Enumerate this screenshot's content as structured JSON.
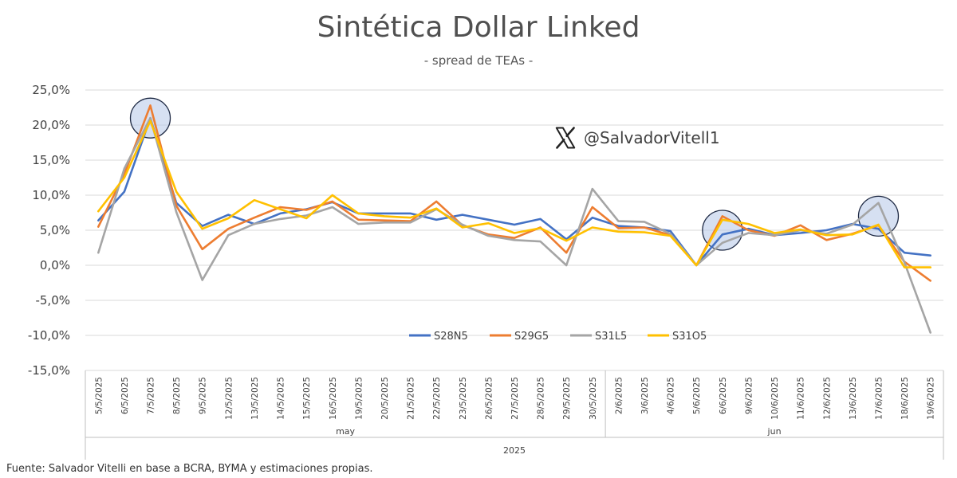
{
  "chart_data": {
    "type": "line",
    "title": "Sintética Dollar Linked",
    "subtitle": "- spread de TEAs -",
    "x": [
      "5/5/2025",
      "6/5/2025",
      "7/5/2025",
      "8/5/2025",
      "9/5/2025",
      "12/5/2025",
      "13/5/2025",
      "14/5/2025",
      "15/5/2025",
      "16/5/2025",
      "19/5/2025",
      "20/5/2025",
      "21/5/2025",
      "22/5/2025",
      "23/5/2025",
      "26/5/2025",
      "27/5/2025",
      "28/5/2025",
      "29/5/2025",
      "30/5/2025",
      "2/6/2025",
      "3/6/2025",
      "4/6/2025",
      "5/6/2025",
      "6/6/2025",
      "9/6/2025",
      "10/6/2025",
      "11/6/2025",
      "12/6/2025",
      "13/6/2025",
      "17/6/2025",
      "18/6/2025",
      "19/6/2025"
    ],
    "groups": [
      {
        "label": "may",
        "start": 0,
        "end": 19
      },
      {
        "label": "jun",
        "start": 20,
        "end": 32
      }
    ],
    "year_label": "2025",
    "y_ticks": [
      "25,0%",
      "20,0%",
      "15,0%",
      "10,0%",
      "5,0%",
      "0,0%",
      "-5,0%",
      "-10,0%",
      "-15,0%"
    ],
    "ylim": [
      -15,
      25
    ],
    "y_step": 5,
    "grid": true,
    "legend_position": "bottom-center-inside",
    "series": [
      {
        "name": "S28N5",
        "color": "#4472C4",
        "values": [
          6.4,
          10.5,
          21.0,
          8.9,
          5.6,
          7.2,
          5.9,
          7.4,
          8.0,
          9.0,
          7.4,
          7.4,
          7.4,
          6.5,
          7.2,
          6.5,
          5.8,
          6.6,
          3.7,
          6.8,
          5.6,
          5.4,
          4.9,
          0.0,
          4.4,
          5.2,
          4.3,
          4.6,
          5.0,
          5.9,
          5.2,
          1.8,
          1.4
        ]
      },
      {
        "name": "S29G5",
        "color": "#ED7D31",
        "values": [
          5.5,
          13.0,
          22.8,
          8.5,
          2.3,
          5.2,
          6.8,
          8.3,
          7.9,
          9.1,
          6.5,
          6.4,
          6.3,
          9.1,
          5.7,
          4.4,
          3.9,
          5.4,
          1.8,
          8.3,
          5.3,
          5.4,
          4.3,
          0.0,
          7.0,
          5.0,
          4.2,
          5.7,
          3.6,
          4.5,
          5.7,
          0.5,
          -2.2
        ]
      },
      {
        "name": "S31L5",
        "color": "#A5A5A5",
        "values": [
          1.8,
          13.8,
          21.0,
          7.6,
          -2.1,
          4.3,
          5.9,
          6.6,
          7.1,
          8.3,
          5.9,
          6.1,
          6.1,
          8.0,
          5.8,
          4.2,
          3.6,
          3.4,
          0.0,
          10.9,
          6.3,
          6.2,
          4.5,
          0.0,
          3.2,
          4.6,
          4.3,
          5.0,
          4.5,
          5.8,
          8.9,
          0.4,
          -9.6
        ]
      },
      {
        "name": "S31O5",
        "color": "#FFC000",
        "values": [
          7.7,
          12.5,
          20.6,
          10.5,
          5.2,
          6.7,
          9.3,
          8.0,
          6.7,
          10.0,
          7.4,
          7.0,
          6.8,
          8.1,
          5.4,
          6.0,
          4.6,
          5.3,
          3.5,
          5.4,
          4.8,
          4.7,
          4.2,
          0.0,
          6.5,
          5.9,
          4.6,
          5.1,
          4.3,
          4.4,
          5.8,
          -0.3,
          -0.3
        ]
      }
    ],
    "highlights": [
      {
        "x_index": 2,
        "y": 21.0
      },
      {
        "x_index": 24,
        "y": 5.0
      },
      {
        "x_index": 30,
        "y": 7.0
      }
    ]
  },
  "watermark": {
    "handle": "@SalvadorVitell1",
    "icon": "x-logo-icon"
  },
  "source": "Fuente: Salvador Vitelli en base a BCRA, BYMA y estimaciones propias."
}
